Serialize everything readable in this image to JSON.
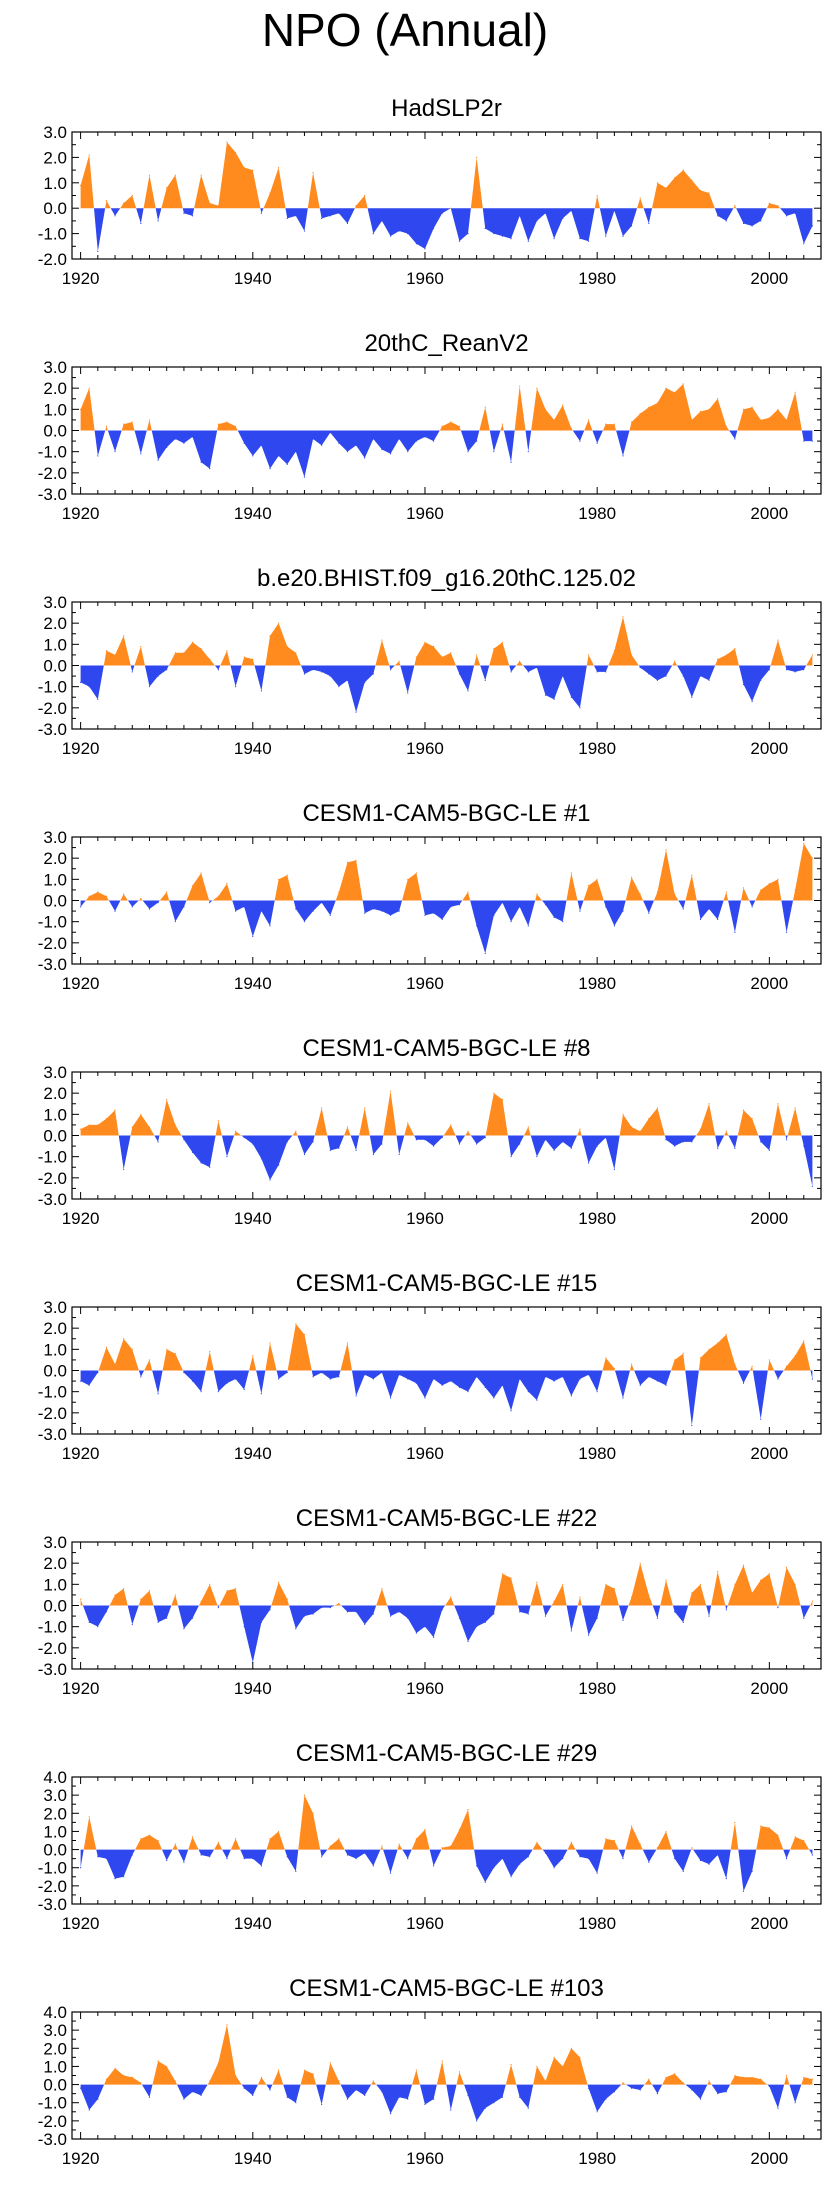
{
  "title": "NPO (Annual)",
  "colors": {
    "positive": "#ff8a1e",
    "negative": "#2e47ee",
    "axis": "#000000"
  },
  "chart_data": [
    {
      "type": "area",
      "title": "HadSLP2r",
      "xlim": [
        1919,
        2006
      ],
      "ylim": [
        -2,
        3
      ],
      "yticks": [
        3,
        2,
        1,
        0,
        -1,
        -2
      ],
      "ytick_labels": [
        "3.0",
        "2.0",
        "1.0",
        "0.0",
        "-1.0",
        "-2.0"
      ],
      "xticks": [
        1920,
        1940,
        1960,
        1980,
        2000
      ],
      "xtick_labels": [
        "1920",
        "1940",
        "1960",
        "1980",
        "2000"
      ],
      "x_start": 1920,
      "values": [
        0.9,
        2.1,
        -1.7,
        0.3,
        -0.3,
        0.2,
        0.5,
        -0.6,
        1.3,
        -0.5,
        0.8,
        1.3,
        -0.2,
        -0.3,
        1.3,
        0.2,
        0.1,
        2.6,
        2.2,
        1.6,
        1.5,
        -0.2,
        0.6,
        1.6,
        -0.4,
        -0.3,
        -0.9,
        1.4,
        -0.4,
        -0.3,
        -0.2,
        -0.6,
        0.1,
        0.5,
        -1.0,
        -0.5,
        -1.1,
        -0.9,
        -1.0,
        -1.4,
        -1.6,
        -0.8,
        -0.2,
        0.0,
        -1.3,
        -1.0,
        2.0,
        -0.8,
        -1.0,
        -1.1,
        -1.2,
        -0.3,
        -1.3,
        -0.5,
        -0.2,
        -1.2,
        -0.4,
        -0.1,
        -1.2,
        -1.3,
        0.5,
        -1.1,
        -0.1,
        -1.1,
        -0.7,
        0.4,
        -0.6,
        1.0,
        0.8,
        1.2,
        1.5,
        1.1,
        0.7,
        0.6,
        -0.3,
        -0.5,
        0.1,
        -0.6,
        -0.7,
        -0.5,
        0.2,
        0.1,
        -0.3,
        -0.2,
        -1.4,
        -0.7
      ]
    },
    {
      "type": "area",
      "title": "20thC_ReanV2",
      "xlim": [
        1919,
        2006
      ],
      "ylim": [
        -3,
        3
      ],
      "yticks": [
        3,
        2,
        1,
        0,
        -1,
        -2,
        -3
      ],
      "ytick_labels": [
        "3.0",
        "2.0",
        "1.0",
        "0.0",
        "-1.0",
        "-2.0",
        "-3.0"
      ],
      "xticks": [
        1920,
        1940,
        1960,
        1980,
        2000
      ],
      "xtick_labels": [
        "1920",
        "1940",
        "1960",
        "1980",
        "2000"
      ],
      "x_start": 1920,
      "values": [
        1.0,
        2.0,
        -1.2,
        0.2,
        -1.0,
        0.3,
        0.4,
        -1.1,
        0.5,
        -1.4,
        -0.8,
        -0.4,
        -0.6,
        -0.3,
        -1.5,
        -1.8,
        0.3,
        0.4,
        0.2,
        -0.6,
        -1.2,
        -0.7,
        -1.8,
        -1.2,
        -1.6,
        -1.0,
        -2.2,
        -0.4,
        -0.7,
        -0.1,
        -0.6,
        -1.0,
        -0.7,
        -1.3,
        -0.4,
        -0.9,
        -1.1,
        -0.4,
        -1.0,
        -0.5,
        -0.3,
        -0.5,
        0.2,
        0.4,
        0.2,
        -1.0,
        -0.5,
        1.1,
        -1.0,
        0.3,
        -1.5,
        2.1,
        -1.0,
        2.0,
        1.0,
        0.5,
        1.2,
        0.1,
        -0.5,
        0.5,
        -0.6,
        0.3,
        0.3,
        -1.2,
        0.4,
        0.8,
        1.1,
        1.3,
        2.0,
        1.8,
        2.2,
        0.5,
        0.9,
        1.0,
        1.5,
        0.2,
        -0.4,
        1.0,
        1.1,
        0.5,
        0.6,
        1.0,
        0.5,
        1.8,
        -0.5,
        -0.5
      ]
    },
    {
      "type": "area",
      "title": "b.e20.BHIST.f09_g16.20thC.125.02",
      "xlim": [
        1919,
        2006
      ],
      "ylim": [
        -3,
        3
      ],
      "yticks": [
        3,
        2,
        1,
        0,
        -1,
        -2,
        -3
      ],
      "ytick_labels": [
        "3.0",
        "2.0",
        "1.0",
        "0.0",
        "-1.0",
        "-2.0",
        "-3.0"
      ],
      "xticks": [
        1920,
        1940,
        1960,
        1980,
        2000
      ],
      "xtick_labels": [
        "1920",
        "1940",
        "1960",
        "1980",
        "2000"
      ],
      "x_start": 1920,
      "values": [
        -0.8,
        -1.0,
        -1.6,
        0.7,
        0.5,
        1.4,
        -0.3,
        0.9,
        -1.0,
        -0.5,
        -0.2,
        0.6,
        0.6,
        1.1,
        0.8,
        0.3,
        -0.2,
        0.7,
        -1.0,
        0.4,
        0.3,
        -1.2,
        1.4,
        2.0,
        0.9,
        0.6,
        -0.4,
        -0.2,
        -0.3,
        -0.5,
        -1.0,
        -0.7,
        -2.2,
        -0.8,
        -0.4,
        1.2,
        -0.2,
        0.2,
        -1.3,
        0.4,
        1.1,
        0.9,
        0.4,
        0.6,
        -0.4,
        -1.2,
        0.5,
        -0.7,
        0.8,
        1.1,
        -0.3,
        0.2,
        -0.3,
        -0.1,
        -1.4,
        -1.6,
        -0.5,
        -1.5,
        -2.0,
        0.5,
        -0.3,
        -0.3,
        0.7,
        2.3,
        0.5,
        -0.1,
        -0.4,
        -0.7,
        -0.5,
        0.2,
        -0.5,
        -1.5,
        -0.5,
        -0.7,
        0.3,
        0.5,
        0.8,
        -0.9,
        -1.7,
        -0.7,
        -0.2,
        1.2,
        -0.2,
        -0.3,
        -0.2,
        0.5
      ]
    },
    {
      "type": "area",
      "title": "CESM1-CAM5-BGC-LE #1",
      "xlim": [
        1919,
        2006
      ],
      "ylim": [
        -3,
        3
      ],
      "yticks": [
        3,
        2,
        1,
        0,
        -1,
        -2,
        -3
      ],
      "ytick_labels": [
        "3.0",
        "2.0",
        "1.0",
        "0.0",
        "-1.0",
        "-2.0",
        "-3.0"
      ],
      "xticks": [
        1920,
        1940,
        1960,
        1980,
        2000
      ],
      "xtick_labels": [
        "1920",
        "1940",
        "1960",
        "1980",
        "2000"
      ],
      "x_start": 1920,
      "values": [
        -0.3,
        0.2,
        0.4,
        0.2,
        -0.5,
        0.3,
        -0.3,
        0.1,
        -0.4,
        -0.1,
        0.4,
        -1.0,
        -0.3,
        0.7,
        1.3,
        -0.1,
        0.2,
        0.8,
        -0.5,
        -0.3,
        -1.7,
        -0.5,
        -1.2,
        1.0,
        1.2,
        -0.4,
        -1.0,
        -0.5,
        -0.1,
        -0.7,
        0.4,
        1.8,
        1.9,
        -0.6,
        -0.4,
        -0.5,
        -0.7,
        -0.5,
        1.0,
        1.3,
        -0.7,
        -0.6,
        -0.9,
        -0.3,
        -0.2,
        0.4,
        -1.2,
        -2.5,
        -0.7,
        -0.1,
        -1.0,
        -0.3,
        -1.2,
        0.3,
        -0.2,
        -0.8,
        -1.0,
        1.3,
        -0.5,
        0.7,
        1.0,
        -0.3,
        -1.2,
        -0.5,
        1.1,
        0.3,
        -0.6,
        0.4,
        2.4,
        0.3,
        -0.4,
        1.2,
        -0.9,
        -0.4,
        -0.9,
        0.4,
        -1.5,
        0.6,
        -0.3,
        0.5,
        0.8,
        1.0,
        -1.5,
        0.5,
        2.7,
        2.0
      ]
    },
    {
      "type": "area",
      "title": "CESM1-CAM5-BGC-LE #8",
      "xlim": [
        1919,
        2006
      ],
      "ylim": [
        -3,
        3
      ],
      "yticks": [
        3,
        2,
        1,
        0,
        -1,
        -2,
        -3
      ],
      "ytick_labels": [
        "3.0",
        "2.0",
        "1.0",
        "0.0",
        "-1.0",
        "-2.0",
        "-3.0"
      ],
      "xticks": [
        1920,
        1940,
        1960,
        1980,
        2000
      ],
      "xtick_labels": [
        "1920",
        "1940",
        "1960",
        "1980",
        "2000"
      ],
      "x_start": 1920,
      "values": [
        0.3,
        0.5,
        0.5,
        0.8,
        1.2,
        -1.6,
        0.4,
        1.0,
        0.4,
        -0.3,
        1.7,
        0.5,
        -0.2,
        -0.8,
        -1.3,
        -1.5,
        0.7,
        -1.0,
        0.2,
        -0.1,
        -0.4,
        -1.1,
        -2.1,
        -1.4,
        -0.3,
        0.2,
        -0.9,
        -0.3,
        1.3,
        -0.7,
        -0.6,
        0.4,
        -0.7,
        1.3,
        -0.9,
        -0.4,
        2.1,
        -0.9,
        0.6,
        -0.2,
        -0.2,
        -0.5,
        -0.1,
        0.5,
        -0.4,
        0.2,
        -0.4,
        -0.1,
        2.0,
        1.7,
        -1.0,
        -0.4,
        0.4,
        -1.0,
        -0.2,
        -0.7,
        -0.3,
        -0.6,
        0.3,
        -1.3,
        -0.5,
        -0.1,
        -1.6,
        1.0,
        0.4,
        0.2,
        0.8,
        1.3,
        -0.2,
        -0.5,
        -0.3,
        -0.3,
        0.3,
        1.5,
        -0.6,
        0.2,
        -0.6,
        1.2,
        0.8,
        -0.3,
        -0.7,
        1.5,
        -0.2,
        1.3,
        -0.5,
        -2.4
      ]
    },
    {
      "type": "area",
      "title": "CESM1-CAM5-BGC-LE #15",
      "xlim": [
        1919,
        2006
      ],
      "ylim": [
        -3,
        3
      ],
      "yticks": [
        3,
        2,
        1,
        0,
        -1,
        -2,
        -3
      ],
      "ytick_labels": [
        "3.0",
        "2.0",
        "1.0",
        "0.0",
        "-1.0",
        "-2.0",
        "-3.0"
      ],
      "xticks": [
        1920,
        1940,
        1960,
        1980,
        2000
      ],
      "xtick_labels": [
        "1920",
        "1940",
        "1960",
        "1980",
        "2000"
      ],
      "x_start": 1920,
      "values": [
        -0.5,
        -0.7,
        -0.1,
        1.1,
        0.3,
        1.5,
        1.0,
        -0.3,
        0.5,
        -1.1,
        1.0,
        0.8,
        -0.1,
        -0.5,
        -1.0,
        0.9,
        -1.0,
        -0.6,
        -0.4,
        -0.9,
        0.7,
        -1.1,
        1.3,
        -0.4,
        -0.1,
        2.2,
        1.7,
        -0.3,
        -0.1,
        -0.4,
        -0.3,
        1.3,
        -1.2,
        -0.2,
        -0.4,
        -0.1,
        -1.3,
        -0.2,
        -0.4,
        -0.6,
        -1.3,
        -0.4,
        -0.7,
        -0.5,
        -0.8,
        -1.0,
        -0.3,
        -0.8,
        -1.3,
        -0.7,
        -1.9,
        -0.4,
        -1.0,
        -1.4,
        -0.3,
        -0.5,
        -0.3,
        -1.2,
        -0.4,
        -0.2,
        -1.0,
        0.6,
        0.1,
        -1.3,
        0.3,
        -0.7,
        -0.3,
        -0.5,
        -0.7,
        0.5,
        0.8,
        -2.6,
        0.6,
        1.0,
        1.3,
        1.7,
        0.3,
        -0.6,
        0.2,
        -2.3,
        0.5,
        -0.4,
        0.2,
        0.7,
        1.4,
        -0.4
      ]
    },
    {
      "type": "area",
      "title": "CESM1-CAM5-BGC-LE #22",
      "xlim": [
        1919,
        2006
      ],
      "ylim": [
        -3,
        3
      ],
      "yticks": [
        3,
        2,
        1,
        0,
        -1,
        -2,
        -3
      ],
      "ytick_labels": [
        "3.0",
        "2.0",
        "1.0",
        "0.0",
        "-1.0",
        "-2.0",
        "-3.0"
      ],
      "xticks": [
        1920,
        1940,
        1960,
        1980,
        2000
      ],
      "xtick_labels": [
        "1920",
        "1940",
        "1960",
        "1980",
        "2000"
      ],
      "x_start": 1920,
      "values": [
        0.3,
        -0.8,
        -1.0,
        -0.3,
        0.5,
        0.8,
        -0.9,
        0.3,
        0.7,
        -0.8,
        -0.6,
        0.5,
        -1.1,
        -0.6,
        0.2,
        1.0,
        -0.1,
        0.7,
        0.8,
        -1.0,
        -2.7,
        -0.8,
        -0.2,
        1.1,
        0.3,
        -1.1,
        -0.5,
        -0.4,
        -0.1,
        -0.1,
        0.1,
        -0.3,
        -0.3,
        -0.9,
        -0.4,
        0.8,
        -0.5,
        -0.3,
        -0.6,
        -1.3,
        -1.0,
        -1.5,
        -0.2,
        0.4,
        -0.6,
        -1.7,
        -1.0,
        -0.8,
        -0.4,
        1.5,
        1.3,
        -0.3,
        -0.4,
        1.1,
        -0.5,
        0.2,
        1.0,
        -1.2,
        0.4,
        -1.4,
        -0.6,
        1.0,
        0.8,
        -0.7,
        0.4,
        2.0,
        0.5,
        -0.6,
        1.2,
        -0.3,
        -0.8,
        0.6,
        1.0,
        -0.5,
        1.6,
        -0.2,
        1.0,
        1.9,
        0.6,
        1.2,
        1.5,
        -0.1,
        1.8,
        1.0,
        -0.6,
        0.2
      ]
    },
    {
      "type": "area",
      "title": "CESM1-CAM5-BGC-LE #29",
      "xlim": [
        1919,
        2006
      ],
      "ylim": [
        -3,
        4
      ],
      "yticks": [
        4,
        3,
        2,
        1,
        0,
        -1,
        -2,
        -3
      ],
      "ytick_labels": [
        "4.0",
        "3.0",
        "2.0",
        "1.0",
        "0.0",
        "-1.0",
        "-2.0",
        "-3.0"
      ],
      "xticks": [
        1920,
        1940,
        1960,
        1980,
        2000
      ],
      "xtick_labels": [
        "1920",
        "1940",
        "1960",
        "1980",
        "2000"
      ],
      "x_start": 1920,
      "values": [
        -1.0,
        1.8,
        -0.4,
        -0.5,
        -1.6,
        -1.5,
        -0.3,
        0.6,
        0.8,
        0.5,
        -0.6,
        0.3,
        -0.7,
        0.7,
        -0.3,
        -0.4,
        0.4,
        -0.5,
        0.6,
        -0.5,
        -0.5,
        -0.9,
        0.6,
        1.0,
        -0.4,
        -1.2,
        3.0,
        2.0,
        -0.4,
        0.2,
        0.6,
        -0.3,
        -0.5,
        -0.2,
        -0.9,
        0.2,
        -1.3,
        0.3,
        -0.5,
        0.6,
        1.1,
        -0.9,
        0.1,
        0.2,
        1.1,
        2.2,
        -0.9,
        -1.8,
        -1.0,
        -0.5,
        -1.5,
        -0.8,
        -0.4,
        0.4,
        -0.2,
        -1.0,
        -0.5,
        0.4,
        -0.4,
        -0.5,
        -1.3,
        0.6,
        0.5,
        -0.5,
        1.3,
        0.3,
        -0.7,
        0.1,
        1.0,
        -0.5,
        -1.2,
        0.1,
        -0.6,
        -0.8,
        -0.3,
        -1.6,
        1.5,
        -2.3,
        -1.2,
        1.3,
        1.2,
        0.8,
        -0.5,
        0.7,
        0.5,
        -0.3
      ]
    },
    {
      "type": "area",
      "title": "CESM1-CAM5-BGC-LE #103",
      "xlim": [
        1919,
        2006
      ],
      "ylim": [
        -3,
        4
      ],
      "yticks": [
        4,
        3,
        2,
        1,
        0,
        -1,
        -2,
        -3
      ],
      "ytick_labels": [
        "4.0",
        "3.0",
        "2.0",
        "1.0",
        "0.0",
        "-1.0",
        "-2.0",
        "-3.0"
      ],
      "xticks": [
        1920,
        1940,
        1960,
        1980,
        2000
      ],
      "xtick_labels": [
        "1920",
        "1940",
        "1960",
        "1980",
        "2000"
      ],
      "x_start": 1920,
      "values": [
        -0.2,
        -1.4,
        -0.8,
        0.3,
        0.9,
        0.5,
        0.4,
        0.1,
        -0.7,
        1.3,
        1.0,
        0.2,
        -0.8,
        -0.4,
        -0.6,
        0.2,
        1.2,
        3.3,
        0.5,
        -0.2,
        -0.6,
        0.4,
        -0.3,
        0.8,
        -0.7,
        -1.0,
        0.8,
        0.6,
        -1.1,
        1.2,
        0.2,
        -0.8,
        -0.3,
        -0.6,
        0.2,
        -0.4,
        -1.6,
        -0.7,
        -0.8,
        0.8,
        -1.1,
        -0.8,
        1.3,
        -1.4,
        0.7,
        -0.6,
        -2.0,
        -1.3,
        -1.0,
        -0.7,
        1.1,
        -0.7,
        -1.3,
        1.0,
        0.2,
        1.5,
        1.0,
        2.0,
        1.5,
        -0.2,
        -1.5,
        -0.8,
        -0.4,
        0.1,
        -0.2,
        -0.3,
        0.3,
        -0.5,
        0.4,
        0.6,
        0.1,
        -0.3,
        -0.8,
        0.2,
        -0.5,
        -0.4,
        0.5,
        0.4,
        0.4,
        0.3,
        -0.1,
        -1.3,
        0.5,
        -1.0,
        0.4,
        0.3
      ]
    }
  ]
}
